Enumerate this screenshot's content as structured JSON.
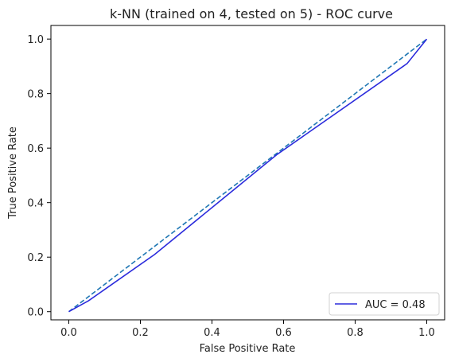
{
  "chart_data": {
    "type": "line",
    "title": "k-NN (trained on 4, tested on 5) -  ROC curve",
    "xlabel": "False Positive Rate",
    "ylabel": "True Positive Rate",
    "xlim": [
      -0.05,
      1.05
    ],
    "ylim": [
      -0.03,
      1.05
    ],
    "xticks": [
      0.0,
      0.2,
      0.4,
      0.6,
      0.8,
      1.0
    ],
    "yticks": [
      0.0,
      0.2,
      0.4,
      0.6,
      0.8,
      1.0
    ],
    "xtick_labels": [
      "0.0",
      "0.2",
      "0.4",
      "0.6",
      "0.8",
      "1.0"
    ],
    "ytick_labels": [
      "0.0",
      "0.2",
      "0.4",
      "0.6",
      "0.8",
      "1.0"
    ],
    "grid": false,
    "legend_position": "bottom-right",
    "series": [
      {
        "name": "AUC = 0.48",
        "color": "#2b2bdc",
        "style": "solid",
        "x": [
          0.0,
          0.055,
          0.24,
          0.58,
          0.945,
          1.0
        ],
        "y": [
          0.0,
          0.04,
          0.21,
          0.575,
          0.91,
          1.0
        ]
      },
      {
        "name": "",
        "color": "#1f77b4",
        "style": "dashed",
        "x": [
          0.0,
          1.0
        ],
        "y": [
          0.0,
          1.0
        ]
      }
    ]
  }
}
